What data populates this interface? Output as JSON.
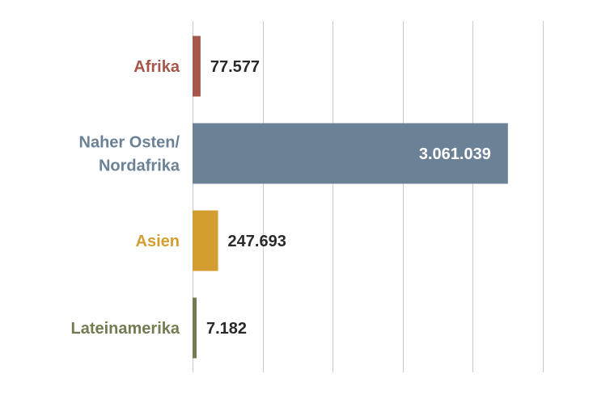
{
  "chart_data": {
    "type": "bar",
    "orientation": "horizontal",
    "categories": [
      "Afrika",
      "Naher Osten/ Nordafrika",
      "Asien",
      "Lateinamerika"
    ],
    "category_lines": [
      [
        "Afrika"
      ],
      [
        "Naher Osten/",
        "Nordafrika"
      ],
      [
        "Asien"
      ],
      [
        "Lateinamerika"
      ]
    ],
    "values": [
      77577,
      3061039,
      247693,
      7182
    ],
    "value_labels": [
      "77.577",
      "3.061.039",
      "247.693",
      "7.182"
    ],
    "value_label_inside": [
      false,
      true,
      false,
      false
    ],
    "colors": [
      "#a4574a",
      "#6b8196",
      "#d39e2f",
      "#727c51"
    ],
    "value_label_colors": [
      "#2a2a2a",
      "#ffffff",
      "#2a2a2a",
      "#2a2a2a"
    ],
    "xlim": [
      0,
      3400000
    ],
    "x_gridline_step": 680000,
    "grid": true,
    "tick_labels_shown": false,
    "title": "",
    "xlabel": "",
    "ylabel": ""
  }
}
